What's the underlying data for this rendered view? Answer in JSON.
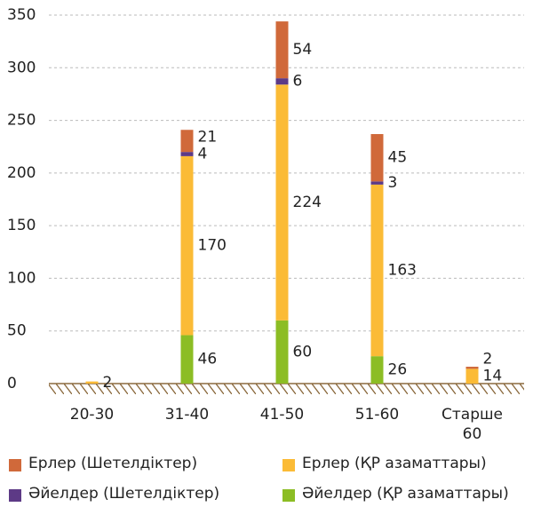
{
  "chart_data": {
    "type": "stacked_bar",
    "categories": [
      "20-30",
      "31-40",
      "41-50",
      "51-60",
      "Старше 60"
    ],
    "series": [
      {
        "name": "Әйелдер (ҚР азаматтары)",
        "color": "#8cbd24",
        "values": [
          0,
          46,
          60,
          26,
          0
        ]
      },
      {
        "name": "Ерлер (ҚР азаматтары)",
        "color": "#fbbb36",
        "values": [
          2,
          170,
          224,
          163,
          14
        ]
      },
      {
        "name": "Әйелдер (Шетелдіктер)",
        "color": "#5d3a86",
        "values": [
          0,
          4,
          6,
          3,
          0
        ]
      },
      {
        "name": "Ерлер (Шетелдіктер)",
        "color": "#d0693a",
        "values": [
          0,
          21,
          54,
          45,
          2
        ]
      }
    ],
    "ylim": [
      0,
      350
    ],
    "yticks": [
      0,
      50,
      100,
      150,
      200,
      250,
      300,
      350
    ],
    "grid": true
  }
}
